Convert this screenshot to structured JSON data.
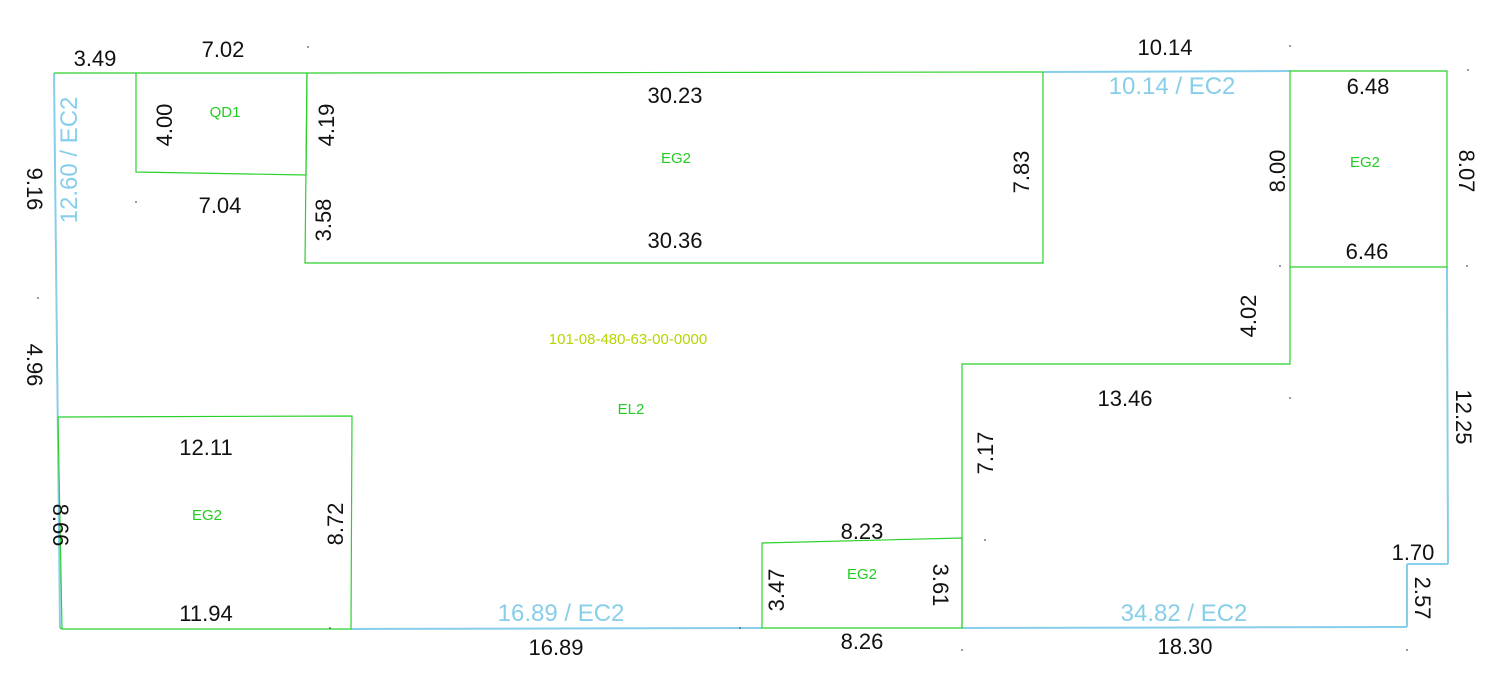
{
  "colors": {
    "background": "#ffffff",
    "outline_green": "#2bd12b",
    "outline_blue": "#87ceeb",
    "dimension_text": "#111111",
    "area_label": "#22cc22",
    "parcel_id": "#b8d400"
  },
  "parcel": {
    "id": "101-08-480-63-00-0000",
    "label": "EL2"
  },
  "areas": {
    "qd1": {
      "label": "QD1",
      "top": "7.02",
      "bottom": "7.04",
      "left": "4.00",
      "right": "4.19"
    },
    "big_eg2": {
      "label": "EG2",
      "top": "30.23",
      "bottom": "30.36",
      "right": "7.83",
      "left": "3.58"
    },
    "right_eg2": {
      "label": "EG2",
      "top": "6.48",
      "bottom": "6.46",
      "left": "8.00",
      "right": "8.07"
    },
    "left_eg2": {
      "label": "EG2",
      "top": "12.11",
      "bottom": "11.94",
      "left": "8.66",
      "right": "8.72"
    },
    "bottom_eg2": {
      "label": "EG2",
      "top": "8.23",
      "bottom": "8.26",
      "left": "3.47",
      "right": "3.61"
    }
  },
  "boundary": {
    "top_left_short": "3.49",
    "top_right": "10.14",
    "top_right_code": "10.14 / EC2",
    "left_code": "12.60 / EC2",
    "left_upper": "9.16",
    "left_middle": "4.96",
    "bottom_left_code": "16.89 / EC2",
    "bottom_left": "16.89",
    "bottom_right_code": "34.82 / EC2",
    "bottom_right": "18.30",
    "step_vertical": "4.02",
    "step_horizontal": "13.46",
    "step_lower_vertical": "7.17",
    "right_side": "12.25",
    "notch_horizontal": "1.70",
    "notch_vertical": "2.57"
  }
}
